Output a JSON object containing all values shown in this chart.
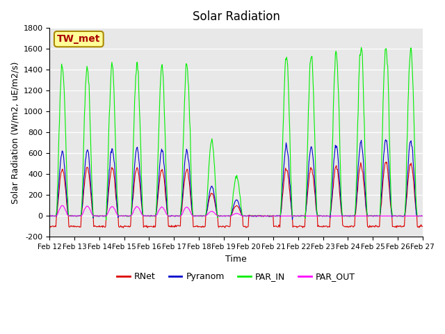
{
  "title": "Solar Radiation",
  "xlabel": "Time",
  "ylabel": "Solar Radiation (W/m2, uE/m2/s)",
  "ylim": [
    -200,
    1800
  ],
  "yticks": [
    -200,
    0,
    200,
    400,
    600,
    800,
    1000,
    1200,
    1400,
    1600,
    1800
  ],
  "xtick_labels": [
    "Feb 12",
    "Feb 13",
    "Feb 14",
    "Feb 15",
    "Feb 16",
    "Feb 17",
    "Feb 18",
    "Feb 19",
    "Feb 20",
    "Feb 21",
    "Feb 22",
    "Feb 23",
    "Feb 24",
    "Feb 25",
    "Feb 26",
    "Feb 27"
  ],
  "legend_labels": [
    "RNet",
    "Pyranom",
    "PAR_IN",
    "PAR_OUT"
  ],
  "legend_colors": [
    "#dd0000",
    "#0000cc",
    "#00ee00",
    "#ff00ff"
  ],
  "annotation_text": "TW_met",
  "annotation_bg": "#ffff99",
  "annotation_border": "#aa8800",
  "annotation_text_color": "#aa0000",
  "plot_bg": "#e8e8e8",
  "figure_bg": "#ffffff",
  "grid_color": "#ffffff",
  "n_days": 15,
  "points_per_day": 48,
  "rnet_peaks": [
    450,
    460,
    460,
    455,
    450,
    445,
    220,
    100,
    0,
    450,
    460,
    470,
    490,
    510,
    500
  ],
  "pyranom_peaks": [
    620,
    635,
    650,
    645,
    640,
    635,
    285,
    155,
    0,
    670,
    670,
    680,
    700,
    740,
    725
  ],
  "par_in_peaks": [
    1440,
    1440,
    1460,
    1460,
    1440,
    1450,
    720,
    380,
    0,
    1525,
    1540,
    1550,
    1625,
    1630,
    1620
  ],
  "par_out_peaks": [
    100,
    95,
    90,
    90,
    85,
    85,
    45,
    25,
    0,
    0,
    0,
    0,
    0,
    0,
    0
  ],
  "rnet_night": -100,
  "cloud_day": 8
}
